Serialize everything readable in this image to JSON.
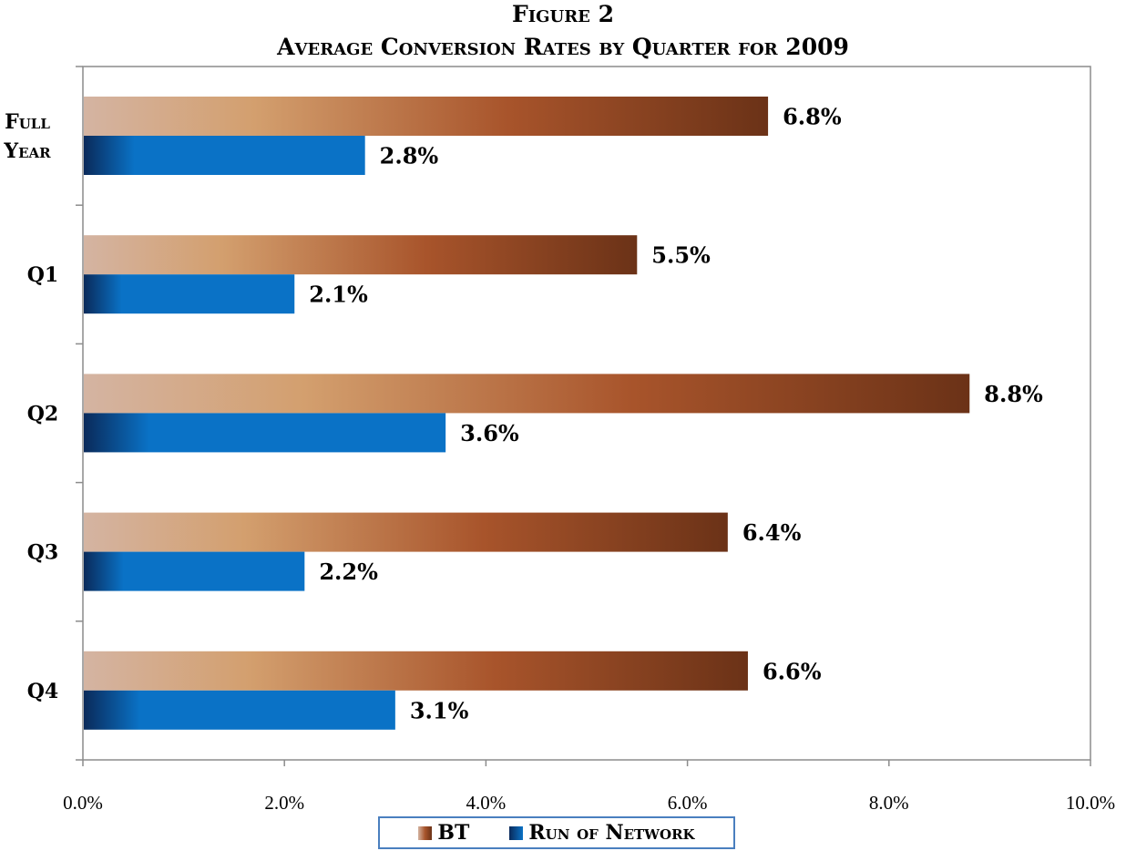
{
  "colors": {
    "bt": "#a0522d",
    "ron": "#0070c0"
  },
  "chart_data": {
    "type": "bar",
    "orientation": "horizontal",
    "title": "Figure 2",
    "subtitle": "Average Conversion Rates by Quarter for 2009",
    "categories": [
      "Full Year",
      "Q1",
      "Q2",
      "Q3",
      "Q4"
    ],
    "series": [
      {
        "name": "BT",
        "values": [
          6.8,
          5.5,
          8.8,
          6.4,
          6.6
        ],
        "labels": [
          "6.8%",
          "5.5%",
          "8.8%",
          "6.4%",
          "6.6%"
        ]
      },
      {
        "name": "Run of Network",
        "values": [
          2.8,
          2.1,
          3.6,
          2.2,
          3.1
        ],
        "labels": [
          "2.8%",
          "2.1%",
          "3.6%",
          "2.2%",
          "3.1%"
        ]
      }
    ],
    "xlim": [
      0,
      10
    ],
    "xticks": [
      "0.0%",
      "2.0%",
      "4.0%",
      "6.0%",
      "8.0%",
      "10.0%"
    ],
    "xlabel": "",
    "ylabel": "",
    "grid": false,
    "legend_position": "bottom"
  }
}
